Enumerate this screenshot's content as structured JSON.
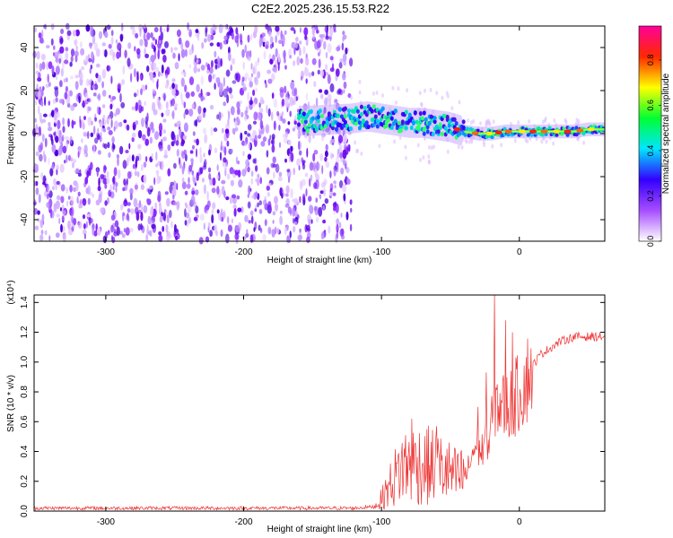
{
  "title": "C2E2.2025.236.15.53.R22",
  "chart_data": [
    {
      "type": "heatmap",
      "name": "spectrogram",
      "xlabel": "Height of straight line (km)",
      "ylabel": "Frequency (Hz)",
      "xlim": [
        -352,
        62
      ],
      "ylim": [
        -50,
        50
      ],
      "xticks": [
        -300,
        -200,
        -100,
        0
      ],
      "yticks": [
        -40,
        -20,
        0,
        20,
        40
      ],
      "noise_region": [
        -352,
        -122
      ],
      "signal_onset_km": -160,
      "signal_center_hz": [
        {
          "x": -160,
          "y": 6
        },
        {
          "x": -150,
          "y": 6
        },
        {
          "x": -122,
          "y": 7
        },
        {
          "x": -110,
          "y": 8
        },
        {
          "x": -100,
          "y": 7
        },
        {
          "x": -90,
          "y": 6
        },
        {
          "x": -80,
          "y": 5
        },
        {
          "x": -70,
          "y": 5
        },
        {
          "x": -60,
          "y": 4
        },
        {
          "x": -50,
          "y": 3
        },
        {
          "x": -40,
          "y": 1
        },
        {
          "x": -30,
          "y": 0
        },
        {
          "x": -20,
          "y": 0
        },
        {
          "x": -10,
          "y": 1
        },
        {
          "x": 0,
          "y": 1
        },
        {
          "x": 10,
          "y": 1
        },
        {
          "x": 20,
          "y": 1
        },
        {
          "x": 30,
          "y": 1
        },
        {
          "x": 40,
          "y": 1
        },
        {
          "x": 50,
          "y": 2
        },
        {
          "x": 62,
          "y": 2
        }
      ],
      "colorbar": {
        "label": "Normalized spectral amplitude",
        "range": [
          0.0,
          0.95
        ],
        "ticks": [
          "0.0",
          "0.2",
          "0.4",
          "0.6",
          "0.8"
        ],
        "colors": [
          "#ffffff",
          "#a64dff",
          "#3300ff",
          "#00e5ff",
          "#00ff33",
          "#ffff00",
          "#ff2a00",
          "#ff0099"
        ]
      }
    },
    {
      "type": "line",
      "name": "snr",
      "xlabel": "Height of straight line (km)",
      "ylabel": "SNR (10 * v/v)",
      "scale_label": "(x10⁴)",
      "xlim": [
        -352,
        62
      ],
      "ylim": [
        0.0,
        1.45
      ],
      "xticks": [
        -300,
        -200,
        -100,
        0
      ],
      "yticks": [
        "0.0",
        "0.2",
        "0.4",
        "0.6",
        "0.8",
        "1.0",
        "1.2",
        "1.4"
      ],
      "color": "#ee3333",
      "series": [
        {
          "name": "SNR",
          "points": [
            {
              "x": -352,
              "y": 0.02
            },
            {
              "x": -300,
              "y": 0.02
            },
            {
              "x": -200,
              "y": 0.02
            },
            {
              "x": -120,
              "y": 0.02
            },
            {
              "x": -105,
              "y": 0.03
            },
            {
              "x": -100,
              "y": 0.08
            },
            {
              "x": -92,
              "y": 0.2
            },
            {
              "x": -85,
              "y": 0.3
            },
            {
              "x": -75,
              "y": 0.32
            },
            {
              "x": -65,
              "y": 0.3
            },
            {
              "x": -55,
              "y": 0.28
            },
            {
              "x": -45,
              "y": 0.22
            },
            {
              "x": -38,
              "y": 0.25
            },
            {
              "x": -33,
              "y": 0.42
            },
            {
              "x": -28,
              "y": 0.4
            },
            {
              "x": -22,
              "y": 0.45
            },
            {
              "x": -18,
              "y": 0.75
            },
            {
              "x": -12,
              "y": 0.7
            },
            {
              "x": -6,
              "y": 0.72
            },
            {
              "x": 0,
              "y": 0.8
            },
            {
              "x": 5,
              "y": 0.88
            },
            {
              "x": 10,
              "y": 0.98
            },
            {
              "x": 15,
              "y": 1.05
            },
            {
              "x": 20,
              "y": 1.08
            },
            {
              "x": 30,
              "y": 1.14
            },
            {
              "x": 40,
              "y": 1.17
            },
            {
              "x": 50,
              "y": 1.17
            },
            {
              "x": 62,
              "y": 1.17
            }
          ]
        }
      ],
      "peaks": [
        {
          "x": -18,
          "y": 1.45
        },
        {
          "x": -10,
          "y": 1.28
        },
        {
          "x": -5,
          "y": 1.2
        },
        {
          "x": -24,
          "y": 0.93
        },
        {
          "x": -30,
          "y": 0.7
        },
        {
          "x": -60,
          "y": 0.57
        },
        {
          "x": -78,
          "y": 0.62
        }
      ]
    }
  ]
}
